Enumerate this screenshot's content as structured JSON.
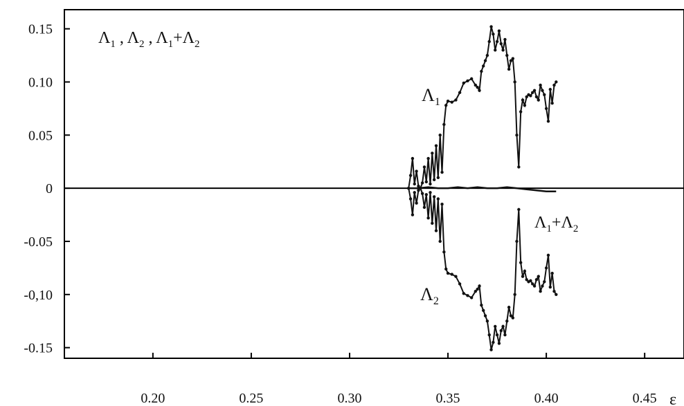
{
  "chart_data": {
    "type": "line",
    "title": "",
    "xlabel": "ε",
    "ylabel": "",
    "xlim": [
      0.155,
      0.47
    ],
    "ylim": [
      -0.16,
      0.168
    ],
    "grid": false,
    "legend_text": {
      "l1": "Λ",
      "s1": "1",
      "sep1": " , ",
      "l2": "Λ",
      "s2": "2",
      "sep2": " , ",
      "l3": "Λ",
      "s3": "1",
      "plus": "+",
      "l4": "Λ",
      "s4": "2"
    },
    "x_ticks": [
      {
        "value": 0.2,
        "label": "0.20"
      },
      {
        "value": 0.25,
        "label": "0.25"
      },
      {
        "value": 0.3,
        "label": "0.30"
      },
      {
        "value": 0.35,
        "label": "0.35"
      },
      {
        "value": 0.4,
        "label": "0.40"
      },
      {
        "value": 0.45,
        "label": "0.45"
      }
    ],
    "y_ticks": [
      {
        "value": 0.15,
        "label": "0.15"
      },
      {
        "value": 0.1,
        "label": "0.10"
      },
      {
        "value": 0.05,
        "label": "0.05"
      },
      {
        "value": 0.0,
        "label": "0"
      },
      {
        "value": -0.05,
        "label": "-0.05"
      },
      {
        "value": -0.1,
        "label": "-0,10"
      },
      {
        "value": -0.15,
        "label": "-0.15"
      }
    ],
    "annotations": {
      "lambda1": {
        "symbol": "Λ",
        "sub": "1"
      },
      "lambda2": {
        "symbol": "Λ",
        "sub": "2"
      },
      "sum": {
        "symbol1": "Λ",
        "sub1": "1",
        "plus": "+",
        "symbol2": "Λ",
        "sub2": "2"
      }
    },
    "series": [
      {
        "name": "Λ1",
        "x": [
          0.33,
          0.331,
          0.332,
          0.333,
          0.334,
          0.335,
          0.336,
          0.337,
          0.338,
          0.339,
          0.34,
          0.341,
          0.342,
          0.343,
          0.344,
          0.345,
          0.346,
          0.347,
          0.348,
          0.349,
          0.35,
          0.352,
          0.354,
          0.356,
          0.358,
          0.36,
          0.362,
          0.364,
          0.365,
          0.366,
          0.367,
          0.368,
          0.369,
          0.37,
          0.371,
          0.372,
          0.373,
          0.374,
          0.375,
          0.376,
          0.377,
          0.378,
          0.379,
          0.38,
          0.381,
          0.382,
          0.383,
          0.384,
          0.385,
          0.386,
          0.387,
          0.388,
          0.389,
          0.39,
          0.391,
          0.392,
          0.393,
          0.394,
          0.395,
          0.396,
          0.397,
          0.398,
          0.399,
          0.4,
          0.401,
          0.402,
          0.403,
          0.404,
          0.405
        ],
        "values": [
          0.0,
          0.012,
          0.028,
          0.004,
          0.016,
          0.002,
          0.0,
          0.005,
          0.02,
          0.006,
          0.028,
          0.004,
          0.033,
          0.008,
          0.04,
          0.01,
          0.05,
          0.015,
          0.06,
          0.078,
          0.082,
          0.081,
          0.083,
          0.09,
          0.099,
          0.101,
          0.103,
          0.097,
          0.095,
          0.092,
          0.11,
          0.115,
          0.12,
          0.125,
          0.138,
          0.152,
          0.145,
          0.13,
          0.138,
          0.148,
          0.136,
          0.13,
          0.14,
          0.125,
          0.112,
          0.12,
          0.122,
          0.1,
          0.05,
          0.02,
          0.072,
          0.083,
          0.078,
          0.086,
          0.088,
          0.087,
          0.09,
          0.092,
          0.086,
          0.083,
          0.097,
          0.092,
          0.088,
          0.075,
          0.063,
          0.093,
          0.08,
          0.097,
          0.1
        ]
      },
      {
        "name": "Λ2",
        "x": [
          0.33,
          0.331,
          0.332,
          0.333,
          0.334,
          0.335,
          0.336,
          0.337,
          0.338,
          0.339,
          0.34,
          0.341,
          0.342,
          0.343,
          0.344,
          0.345,
          0.346,
          0.347,
          0.348,
          0.349,
          0.35,
          0.352,
          0.354,
          0.356,
          0.358,
          0.36,
          0.362,
          0.364,
          0.365,
          0.366,
          0.367,
          0.368,
          0.369,
          0.37,
          0.371,
          0.372,
          0.373,
          0.374,
          0.375,
          0.376,
          0.377,
          0.378,
          0.379,
          0.38,
          0.381,
          0.382,
          0.383,
          0.384,
          0.385,
          0.386,
          0.387,
          0.388,
          0.389,
          0.39,
          0.391,
          0.392,
          0.393,
          0.394,
          0.395,
          0.396,
          0.397,
          0.398,
          0.399,
          0.4,
          0.401,
          0.402,
          0.403,
          0.404,
          0.405
        ],
        "values": [
          0.0,
          -0.01,
          -0.025,
          -0.004,
          -0.014,
          -0.002,
          0.0,
          -0.005,
          -0.018,
          -0.006,
          -0.028,
          -0.004,
          -0.033,
          -0.008,
          -0.04,
          -0.01,
          -0.05,
          -0.015,
          -0.06,
          -0.076,
          -0.08,
          -0.081,
          -0.083,
          -0.09,
          -0.099,
          -0.101,
          -0.103,
          -0.097,
          -0.095,
          -0.092,
          -0.11,
          -0.115,
          -0.12,
          -0.125,
          -0.138,
          -0.152,
          -0.145,
          -0.13,
          -0.138,
          -0.146,
          -0.134,
          -0.13,
          -0.138,
          -0.125,
          -0.112,
          -0.12,
          -0.122,
          -0.1,
          -0.05,
          -0.02,
          -0.07,
          -0.083,
          -0.078,
          -0.086,
          -0.088,
          -0.087,
          -0.09,
          -0.092,
          -0.086,
          -0.083,
          -0.097,
          -0.092,
          -0.088,
          -0.075,
          -0.063,
          -0.093,
          -0.08,
          -0.097,
          -0.1
        ]
      },
      {
        "name": "Λ1+Λ2",
        "x": [
          0.33,
          0.335,
          0.34,
          0.345,
          0.35,
          0.355,
          0.36,
          0.365,
          0.37,
          0.375,
          0.38,
          0.385,
          0.39,
          0.395,
          0.4,
          0.405
        ],
        "values": [
          0.0,
          0.0,
          0.001,
          0.0,
          0.0,
          0.001,
          0.0,
          0.001,
          0.0,
          0.0,
          0.001,
          0.0,
          -0.001,
          -0.002,
          -0.003,
          -0.003
        ]
      }
    ]
  }
}
